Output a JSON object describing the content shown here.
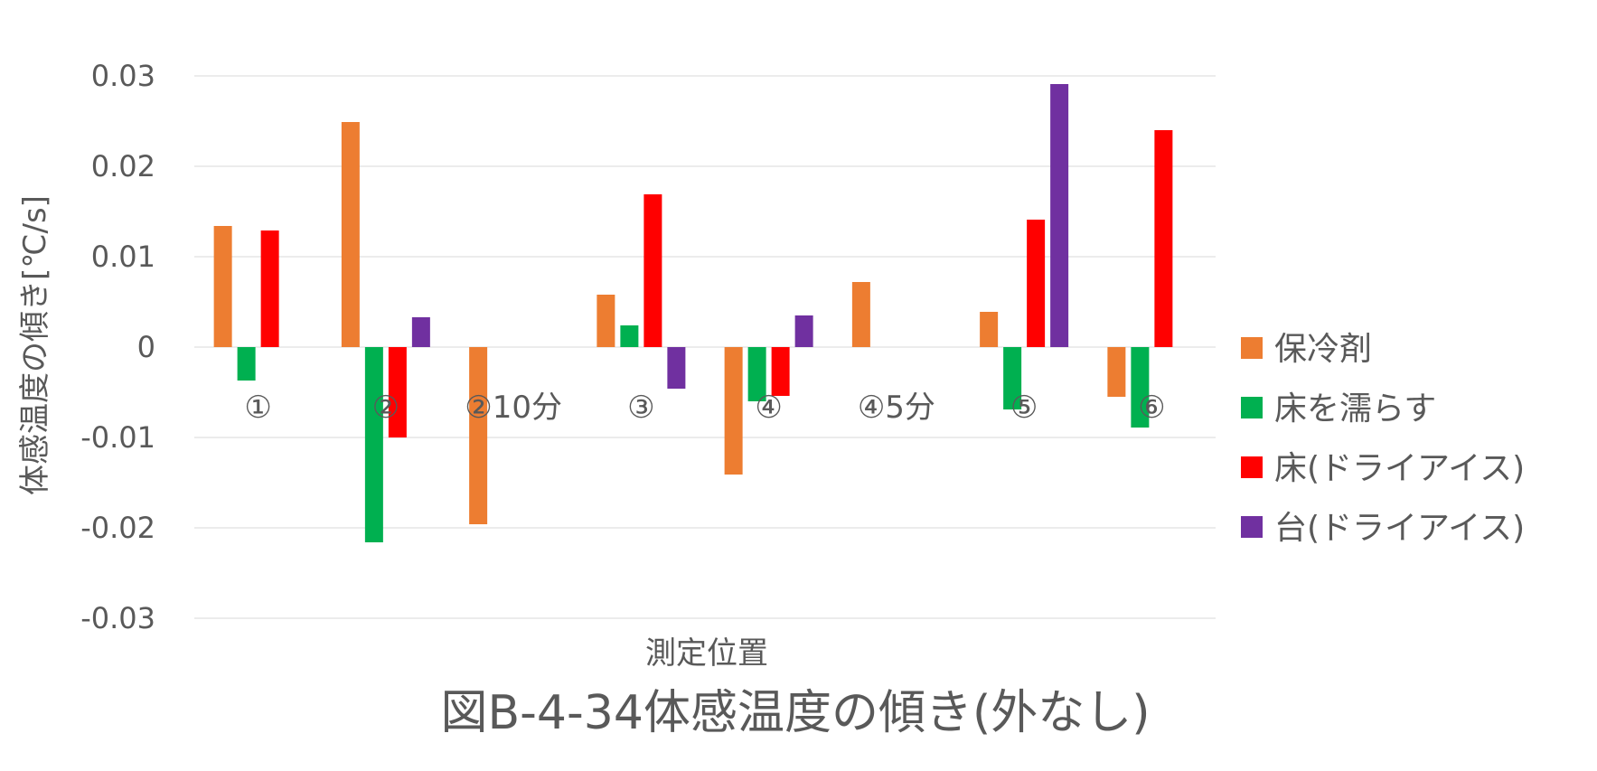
{
  "chart_data": {
    "type": "bar",
    "categories": [
      "①",
      "②",
      "②10分",
      "③",
      "④",
      "④5分",
      "⑤",
      "⑥"
    ],
    "series": [
      {
        "name": "保冷剤",
        "color": "#ED7D31",
        "values": [
          0.0134,
          0.0249,
          -0.0196,
          0.0058,
          -0.0141,
          0.0072,
          0.0039,
          -0.0055
        ]
      },
      {
        "name": "床を濡らす",
        "color": "#00B050",
        "values": [
          -0.0037,
          -0.0216,
          null,
          0.0024,
          -0.006,
          null,
          -0.0069,
          -0.0089
        ]
      },
      {
        "name": "床(ドライアイス)",
        "color": "#FF0000",
        "values": [
          0.0129,
          -0.01,
          null,
          0.0169,
          -0.0054,
          null,
          0.0141,
          0.024
        ]
      },
      {
        "name": "台(ドライアイス)",
        "color": "#7030A0",
        "values": [
          null,
          0.0033,
          null,
          -0.0046,
          0.0035,
          null,
          0.0291,
          null
        ]
      }
    ],
    "ylim": [
      -0.03,
      0.03
    ],
    "yticks": [
      "0.03",
      "0.02",
      "0.01",
      "0",
      "-0.01",
      "-0.02",
      "-0.03"
    ],
    "ytick_values": [
      0.03,
      0.02,
      0.01,
      0,
      -0.01,
      -0.02,
      -0.03
    ],
    "xlabel": "測定位置",
    "ylabel": "体感温度の傾き[℃/s]",
    "caption": "図B-4-34体感温度の傾き(外なし)",
    "grid": true,
    "legend_position": "right"
  }
}
